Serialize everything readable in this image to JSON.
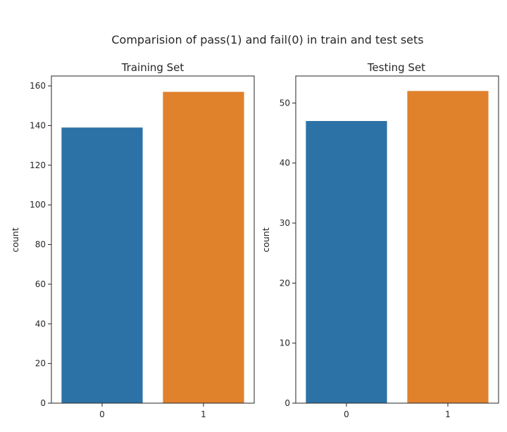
{
  "chart_data": {
    "type": "bar",
    "suptitle": "Comparision of pass(1) and fail(0) in train and test sets",
    "charts": [
      {
        "title": "Training Set",
        "xlabel": "",
        "ylabel": "count",
        "categories": [
          "0",
          "1"
        ],
        "values": [
          139,
          157
        ],
        "colors": [
          "#2c72a6",
          "#e0812c"
        ],
        "ylim": [
          0,
          165
        ],
        "yticks": [
          0,
          20,
          40,
          60,
          80,
          100,
          120,
          140,
          160
        ]
      },
      {
        "title": "Testing Set",
        "xlabel": "",
        "ylabel": "count",
        "categories": [
          "0",
          "1"
        ],
        "values": [
          47,
          52
        ],
        "colors": [
          "#2c72a6",
          "#e0812c"
        ],
        "ylim": [
          0,
          54.5
        ],
        "yticks": [
          0,
          10,
          20,
          30,
          40,
          50
        ]
      }
    ]
  }
}
